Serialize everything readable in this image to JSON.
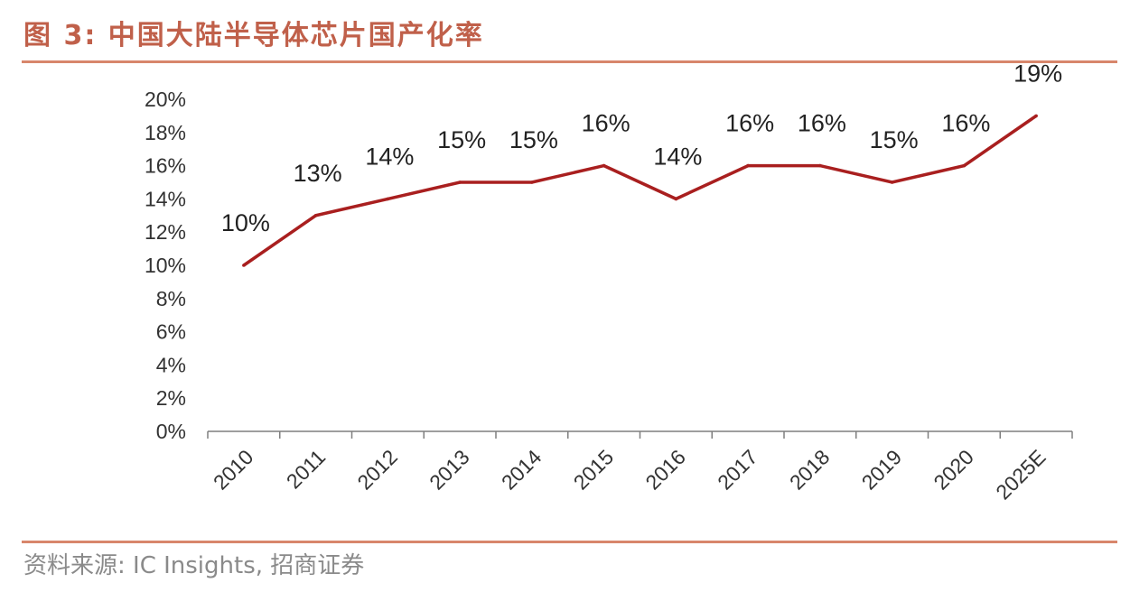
{
  "header": {
    "title": "图 3:  中国大陆半导体芯片国产化率"
  },
  "footer": {
    "source": "资料来源:  IC Insights,  招商证券"
  },
  "chart_data": {
    "type": "line",
    "title": "",
    "xlabel": "",
    "ylabel": "",
    "categories": [
      "2010",
      "2011",
      "2012",
      "2013",
      "2014",
      "2015",
      "2016",
      "2017",
      "2018",
      "2019",
      "2020",
      "2025E"
    ],
    "series": [
      {
        "name": "",
        "values": [
          10,
          13,
          14,
          15,
          15,
          16,
          14,
          16,
          16,
          15,
          16,
          19
        ],
        "labels": [
          "10%",
          "13%",
          "14%",
          "15%",
          "15%",
          "16%",
          "14%",
          "16%",
          "16%",
          "15%",
          "16%",
          "19%"
        ]
      }
    ],
    "yticks": [
      "0%",
      "2%",
      "4%",
      "6%",
      "8%",
      "10%",
      "12%",
      "14%",
      "16%",
      "18%",
      "20%"
    ],
    "ylim": [
      0,
      20
    ],
    "grid": false,
    "colors": {
      "line": "#a91f1f",
      "title": "#c0604a",
      "rule": "#d8866b"
    }
  }
}
